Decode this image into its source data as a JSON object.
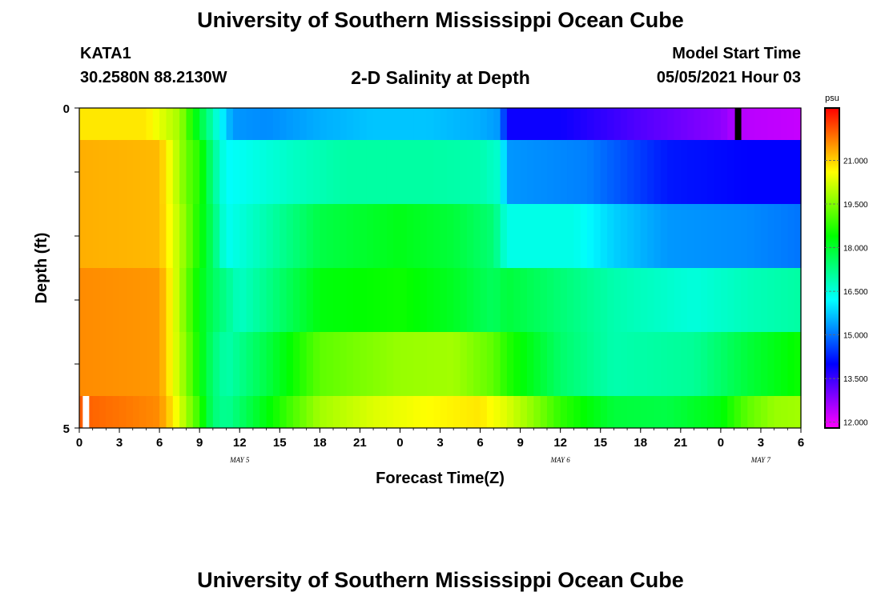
{
  "header": {
    "title": "University of Southern Mississippi Ocean Cube",
    "station": "KATA1",
    "coords": "30.2580N  88.2130W",
    "subtitle": "2-D Salinity at Depth",
    "start_label": "Model Start Time",
    "start_value": "05/05/2021 Hour 03"
  },
  "footer": {
    "title": "University of Southern Mississippi Ocean Cube"
  },
  "chart_data": {
    "type": "heatmap",
    "title": "2-D Salinity at Depth",
    "xlabel": "Forecast Time(Z)",
    "ylabel": "Depth (ft)",
    "x_hours": {
      "start": 0,
      "end": 54,
      "step": 1
    },
    "x_tick_labels": [
      "0",
      "3",
      "6",
      "9",
      "12",
      "15",
      "18",
      "21",
      "0",
      "3",
      "6",
      "9",
      "12",
      "15",
      "18",
      "21",
      "0",
      "3",
      "6"
    ],
    "date_labels": [
      {
        "hour": 12,
        "label": "MAY 5"
      },
      {
        "hour": 36,
        "label": "MAY 6"
      },
      {
        "hour": 51,
        "label": "MAY 7"
      }
    ],
    "y_tick_labels": [
      "0",
      "5"
    ],
    "ylim": [
      0,
      5
    ],
    "colorbar": {
      "unit": "psu",
      "range": [
        11.8,
        22.8
      ],
      "tick_labels": [
        "12.000",
        "13.500",
        "15.000",
        "16.500",
        "18.000",
        "19.500",
        "21.000"
      ],
      "colors": [
        "#ff00ff",
        "#8000ff",
        "#0000ff",
        "#0080ff",
        "#00ffff",
        "#00ff80",
        "#00ff00",
        "#80ff00",
        "#ffff00",
        "#ff8000",
        "#ff0000"
      ]
    },
    "layers": [
      {
        "depth": "0-0.5",
        "points": [
          [
            0,
            20.8
          ],
          [
            5,
            20.8
          ],
          [
            6.5,
            20.2
          ],
          [
            7.5,
            19.8
          ],
          [
            8.5,
            18.5
          ],
          [
            9.5,
            17.4
          ],
          [
            10.5,
            16.3
          ],
          [
            11.5,
            15.3
          ],
          [
            14,
            15.2
          ],
          [
            18,
            15.5
          ],
          [
            22,
            15.7
          ],
          [
            26,
            15.7
          ],
          [
            30,
            15.5
          ],
          [
            31.5,
            15.3
          ],
          [
            32,
            13.9
          ],
          [
            36,
            13.9
          ],
          [
            42,
            13.3
          ],
          [
            48,
            12.8
          ],
          [
            49,
            12.5
          ],
          [
            50,
            12.4
          ],
          [
            54,
            12.3
          ]
        ]
      },
      {
        "depth": "0.5-1.5",
        "points": [
          [
            0,
            21.3
          ],
          [
            6,
            21.2
          ],
          [
            7,
            20.3
          ],
          [
            8,
            19.3
          ],
          [
            9,
            18.7
          ],
          [
            10,
            17.2
          ],
          [
            11,
            16.2
          ],
          [
            12,
            16.3
          ],
          [
            16,
            16.7
          ],
          [
            20,
            17.0
          ],
          [
            26,
            17.0
          ],
          [
            30,
            16.9
          ],
          [
            31.5,
            16.6
          ],
          [
            32,
            15.3
          ],
          [
            38,
            15.1
          ],
          [
            44,
            14.2
          ],
          [
            50,
            14.0
          ],
          [
            54,
            14.0
          ]
        ]
      },
      {
        "depth": "1.5-2.5",
        "points": [
          [
            0,
            21.3
          ],
          [
            6,
            21.2
          ],
          [
            7,
            20.4
          ],
          [
            8,
            19.5
          ],
          [
            9,
            18.5
          ],
          [
            10,
            17.5
          ],
          [
            11,
            16.3
          ],
          [
            14,
            16.9
          ],
          [
            18,
            17.8
          ],
          [
            24,
            18.2
          ],
          [
            28,
            17.9
          ],
          [
            31,
            17.4
          ],
          [
            32,
            16.4
          ],
          [
            37,
            16.4
          ],
          [
            40,
            15.8
          ],
          [
            44,
            15.3
          ],
          [
            50,
            15.2
          ],
          [
            54,
            15.0
          ]
        ]
      },
      {
        "depth": "2.5-3.5",
        "points": [
          [
            0,
            21.6
          ],
          [
            6,
            21.5
          ],
          [
            7,
            20.5
          ],
          [
            8,
            19.3
          ],
          [
            9,
            18.3
          ],
          [
            10,
            17.6
          ],
          [
            11,
            17.2
          ],
          [
            12,
            16.7
          ],
          [
            14,
            17.2
          ],
          [
            18,
            18.3
          ],
          [
            24,
            18.5
          ],
          [
            28,
            18.1
          ],
          [
            31,
            17.6
          ],
          [
            32,
            17.9
          ],
          [
            36,
            17.4
          ],
          [
            40,
            16.9
          ],
          [
            46,
            16.5
          ],
          [
            50,
            16.8
          ],
          [
            54,
            17.0
          ]
        ]
      },
      {
        "depth": "3.5-4.5",
        "points": [
          [
            0,
            21.6
          ],
          [
            6,
            21.5
          ],
          [
            7,
            20.5
          ],
          [
            8,
            19.5
          ],
          [
            9,
            18.4
          ],
          [
            10,
            17.4
          ],
          [
            11,
            16.9
          ],
          [
            14,
            17.8
          ],
          [
            18,
            19.2
          ],
          [
            24,
            19.7
          ],
          [
            28,
            19.8
          ],
          [
            31,
            19.2
          ],
          [
            32,
            18.7
          ],
          [
            36,
            17.5
          ],
          [
            40,
            16.9
          ],
          [
            46,
            17.1
          ],
          [
            50,
            17.9
          ],
          [
            54,
            18.5
          ]
        ]
      },
      {
        "depth": "4.5-5",
        "points": [
          [
            0,
            22.0
          ],
          [
            6,
            21.6
          ],
          [
            7,
            20.8
          ],
          [
            8,
            19.8
          ],
          [
            9,
            18.8
          ],
          [
            10,
            17.4
          ],
          [
            11,
            17.1
          ],
          [
            14,
            18.3
          ],
          [
            18,
            19.8
          ],
          [
            22,
            20.3
          ],
          [
            26,
            20.6
          ],
          [
            30,
            20.8
          ],
          [
            32,
            20.3
          ],
          [
            34,
            19.6
          ],
          [
            36,
            18.8
          ],
          [
            40,
            17.9
          ],
          [
            44,
            17.8
          ],
          [
            48,
            18.3
          ],
          [
            50,
            19.2
          ],
          [
            52,
            19.7
          ],
          [
            54,
            19.8
          ]
        ]
      }
    ],
    "markers": [
      {
        "hour": 49.3,
        "layer": 0,
        "color": "#000000"
      },
      {
        "hour": 0.5,
        "layer": 5,
        "color": "#ffffff"
      }
    ]
  }
}
